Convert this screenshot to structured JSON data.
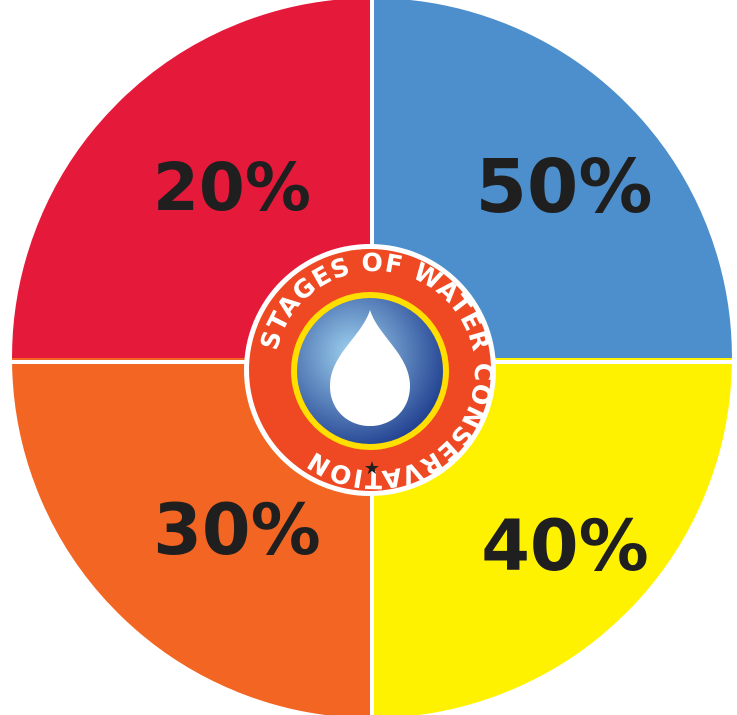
{
  "quadrants": [
    {
      "id": "top-left",
      "label": "20%",
      "color": "#e5193a"
    },
    {
      "id": "top-right",
      "label": "50%",
      "color": "#4d8fcc"
    },
    {
      "id": "bottom-right",
      "label": "40%",
      "color": "#fff200"
    },
    {
      "id": "bottom-left",
      "label": "30%",
      "color": "#f26522"
    }
  ],
  "badge": {
    "ring_text": "STAGES OF WATER CONSERVATION",
    "star": "★",
    "ring_color": "#ef4923",
    "inner_border_color": "#ffde00",
    "disc_color_center": "#9fd3f0",
    "disc_color_edge": "#1c3a8c",
    "drop_icon": "water-drop-icon"
  }
}
